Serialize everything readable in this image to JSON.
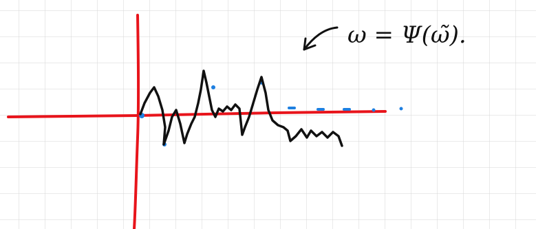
{
  "annotation": {
    "formula": "ω = Ψ(ω̃)."
  }
}
